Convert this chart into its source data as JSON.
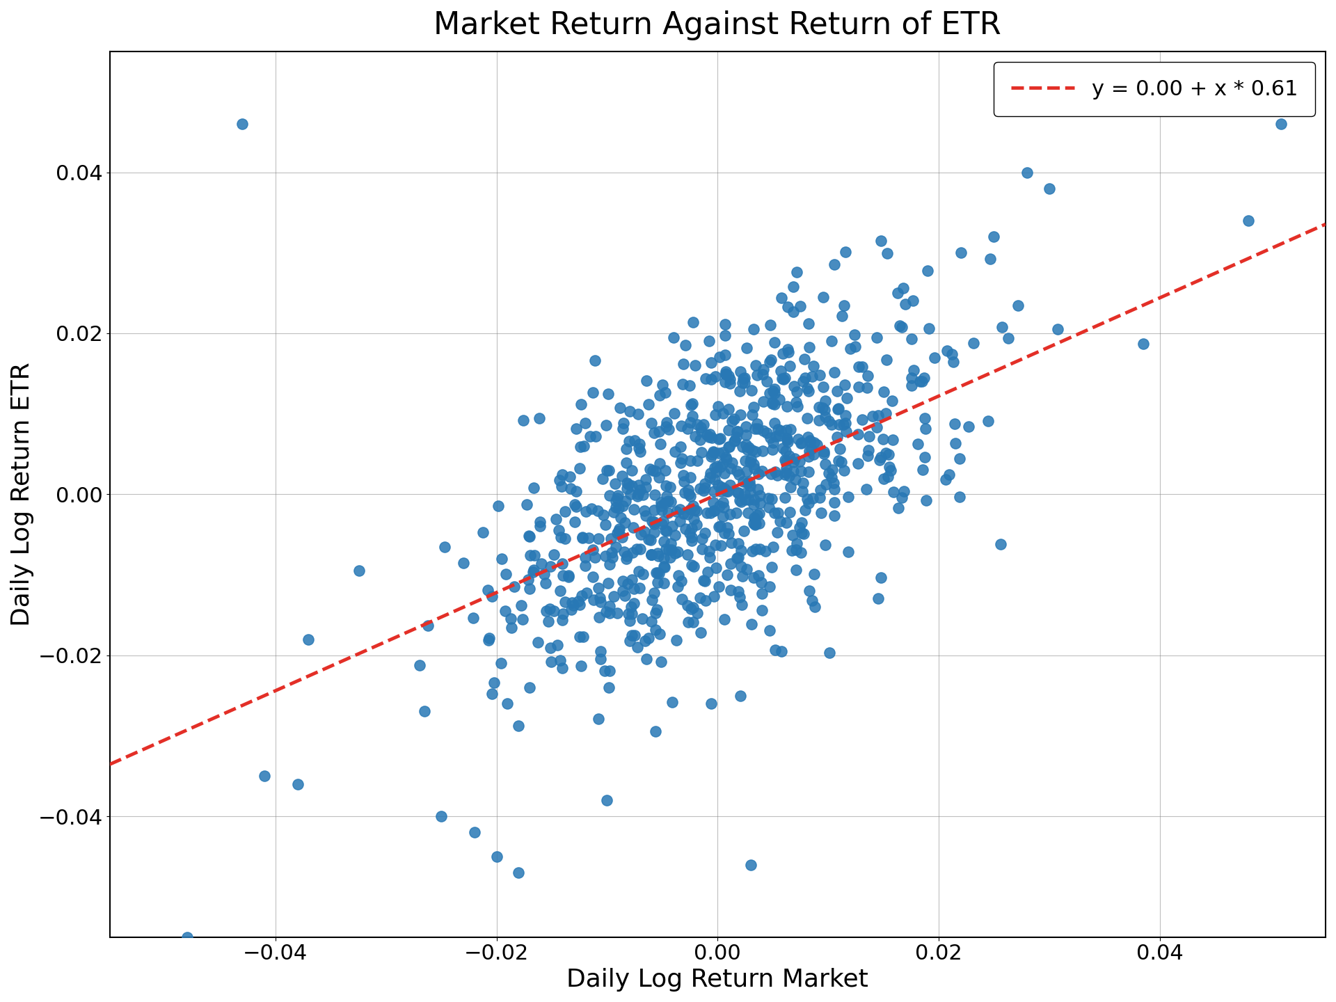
{
  "title": "Market Return Against Return of ETR",
  "xlabel": "Daily Log Return Market",
  "ylabel": "Daily Log Return ETR",
  "legend_label": "y = 0.00 + x * 0.61",
  "scatter_color": "#2878b5",
  "line_color": "#e32f27",
  "xlim": [
    -0.055,
    0.055
  ],
  "ylim": [
    -0.055,
    0.055
  ],
  "xticks": [
    -0.04,
    -0.02,
    0.0,
    0.02,
    0.04
  ],
  "yticks": [
    -0.04,
    -0.02,
    0.0,
    0.02,
    0.04
  ],
  "intercept": 0.0,
  "slope": 0.61,
  "n_points": 800,
  "random_seed": 42,
  "dot_size": 120,
  "title_fontsize": 32,
  "label_fontsize": 26,
  "tick_fontsize": 22,
  "legend_fontsize": 22
}
